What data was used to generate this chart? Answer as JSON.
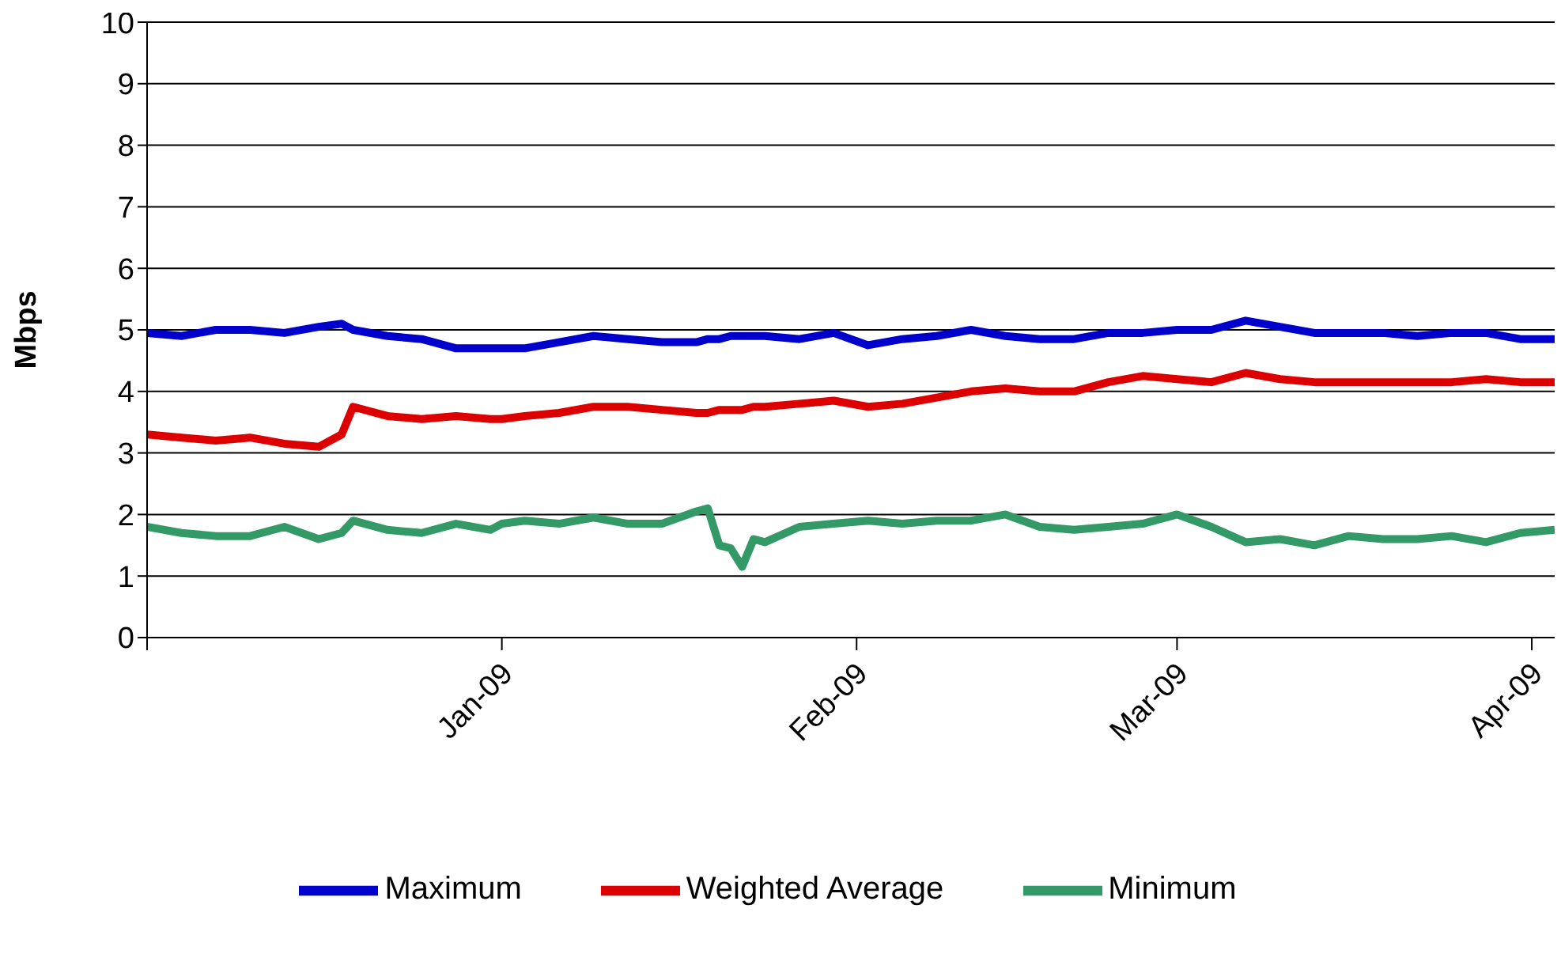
{
  "chart_data": {
    "type": "line",
    "ylabel": "Mbps",
    "x": [
      "2008-12-01",
      "2008-12-04",
      "2008-12-07",
      "2008-12-10",
      "2008-12-13",
      "2008-12-16",
      "2008-12-18",
      "2008-12-19",
      "2008-12-22",
      "2008-12-25",
      "2008-12-28",
      "2008-12-31",
      "2009-01-01",
      "2009-01-03",
      "2009-01-06",
      "2009-01-09",
      "2009-01-12",
      "2009-01-15",
      "2009-01-18",
      "2009-01-19",
      "2009-01-20",
      "2009-01-21",
      "2009-01-22",
      "2009-01-23",
      "2009-01-24",
      "2009-01-27",
      "2009-01-30",
      "2009-02-02",
      "2009-02-05",
      "2009-02-08",
      "2009-02-11",
      "2009-02-14",
      "2009-02-17",
      "2009-02-20",
      "2009-02-23",
      "2009-02-26",
      "2009-03-01",
      "2009-03-04",
      "2009-03-07",
      "2009-03-10",
      "2009-03-13",
      "2009-03-16",
      "2009-03-19",
      "2009-03-22",
      "2009-03-25",
      "2009-03-28",
      "2009-03-31",
      "2009-04-03"
    ],
    "series": [
      {
        "name": "Maximum",
        "color": "#0000cc",
        "values": [
          4.95,
          4.9,
          5.0,
          5.0,
          4.95,
          5.05,
          5.1,
          5.0,
          4.9,
          4.85,
          4.7,
          4.7,
          4.7,
          4.7,
          4.8,
          4.9,
          4.85,
          4.8,
          4.8,
          4.85,
          4.85,
          4.9,
          4.9,
          4.9,
          4.9,
          4.85,
          4.95,
          4.75,
          4.85,
          4.9,
          5.0,
          4.9,
          4.85,
          4.85,
          4.95,
          4.95,
          5.0,
          5.0,
          5.15,
          5.05,
          4.95,
          4.95,
          4.95,
          4.9,
          4.95,
          4.95,
          4.85,
          4.85
        ]
      },
      {
        "name": "Weighted Average",
        "color": "#dd0000",
        "values": [
          3.3,
          3.25,
          3.2,
          3.25,
          3.15,
          3.1,
          3.3,
          3.75,
          3.6,
          3.55,
          3.6,
          3.55,
          3.55,
          3.6,
          3.65,
          3.75,
          3.75,
          3.7,
          3.65,
          3.65,
          3.7,
          3.7,
          3.7,
          3.75,
          3.75,
          3.8,
          3.85,
          3.75,
          3.8,
          3.9,
          4.0,
          4.05,
          4.0,
          4.0,
          4.15,
          4.25,
          4.2,
          4.15,
          4.3,
          4.2,
          4.15,
          4.15,
          4.15,
          4.15,
          4.15,
          4.2,
          4.15,
          4.15
        ]
      },
      {
        "name": "Minimum",
        "color": "#339966",
        "values": [
          1.8,
          1.7,
          1.65,
          1.65,
          1.8,
          1.6,
          1.7,
          1.9,
          1.75,
          1.7,
          1.85,
          1.75,
          1.85,
          1.9,
          1.85,
          1.95,
          1.85,
          1.85,
          2.05,
          2.1,
          1.5,
          1.45,
          1.15,
          1.6,
          1.55,
          1.8,
          1.85,
          1.9,
          1.85,
          1.9,
          1.9,
          2.0,
          1.8,
          1.75,
          1.8,
          1.85,
          2.0,
          1.8,
          1.55,
          1.6,
          1.5,
          1.65,
          1.6,
          1.6,
          1.65,
          1.55,
          1.7,
          1.75
        ]
      }
    ],
    "xlim": [
      "2008-12-01",
      "2009-04-03"
    ],
    "xticks": [
      {
        "value": "2008-12-01",
        "label": null
      },
      {
        "value": "2009-01-01",
        "label": "Jan-09"
      },
      {
        "value": "2009-02-01",
        "label": "Feb-09"
      },
      {
        "value": "2009-03-01",
        "label": "Mar-09"
      },
      {
        "value": "2009-04-01",
        "label": "Apr-09"
      }
    ],
    "ylim": [
      0,
      10
    ],
    "yticks": [
      0,
      1,
      2,
      3,
      4,
      5,
      6,
      7,
      8,
      9,
      10
    ],
    "grid": "y",
    "legend": "bottom",
    "line_style": "solid",
    "marker": "none"
  }
}
